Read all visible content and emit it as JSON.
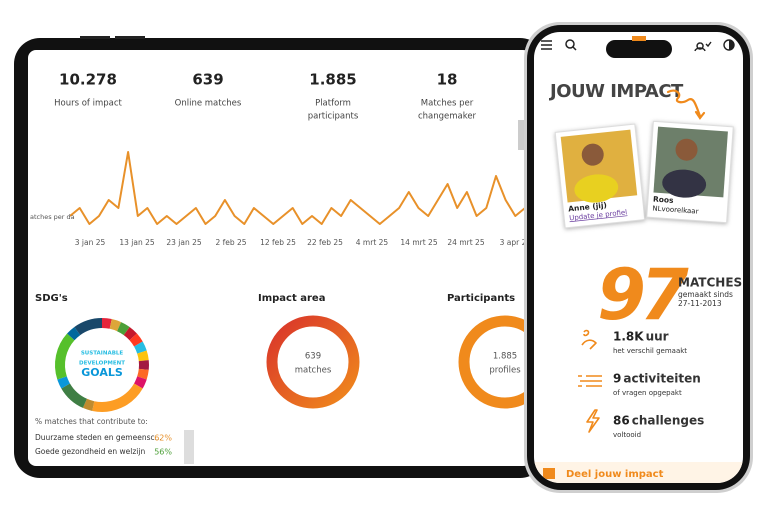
{
  "tablet": {
    "stats": [
      {
        "value": "10.278",
        "label": [
          "Hours of impact"
        ]
      },
      {
        "value": "639",
        "label": [
          "Online matches"
        ]
      },
      {
        "value": "1.885",
        "label": [
          "Platform",
          "participants"
        ]
      },
      {
        "value": "18",
        "label": [
          "Matches per",
          "changemaker"
        ]
      }
    ],
    "chart": {
      "type": "line",
      "y_label": "atches per da",
      "color": "#e8912a",
      "values": [
        2,
        3,
        1,
        2,
        4,
        3,
        10,
        2,
        3,
        1,
        2,
        1,
        2,
        3,
        1,
        2,
        4,
        2,
        1,
        3,
        2,
        1,
        2,
        3,
        1,
        2,
        1,
        3,
        2,
        4,
        3,
        2,
        1,
        2,
        3,
        5,
        3,
        2,
        4,
        6,
        3,
        5,
        2,
        3,
        7,
        4,
        2,
        3
      ],
      "ylim": [
        0,
        12
      ],
      "xtick_labels": [
        "3 jan 25",
        "13 jan 25",
        "23 jan 25",
        "2 feb 25",
        "12 feb 25",
        "22 feb 25",
        "4 mrt 25",
        "14 mrt 25",
        "24 mrt 25",
        "3 apr 2"
      ]
    },
    "sections": {
      "sdg": {
        "title": "SDG's",
        "center": [
          "SUSTAINABLE",
          "DEVELOPMENT",
          "GOALS"
        ]
      },
      "impact": {
        "title": "Impact area",
        "center": [
          "639",
          "matches"
        ]
      },
      "participants": {
        "title": "Participants",
        "center": [
          "1.885",
          "profiles"
        ]
      }
    },
    "contribute": {
      "title": "% matches that contribute to:",
      "rows": [
        {
          "name": "Duurzame steden en gemeensc...",
          "pct": "62%",
          "color": "#e8912a"
        },
        {
          "name": "Goede gezondheid en welzijn",
          "pct": "56%",
          "color": "#4c9f38"
        }
      ]
    }
  },
  "phone": {
    "title": "JOUW IMPACT",
    "cards": [
      {
        "name": "Anne (jij)",
        "sub": "Update je profiel"
      },
      {
        "name": "Roos",
        "sub": "NLvoorelkaar"
      }
    ],
    "big_number": "97",
    "big_label": "MATCHES",
    "big_sub": [
      "gemaakt sinds",
      "27-11-2013"
    ],
    "rows": [
      {
        "num": "1.8K",
        "unit": "uur",
        "sub": "het verschil gemaakt"
      },
      {
        "num": "9",
        "unit": "activiteiten",
        "sub": "of vragen opgepakt"
      },
      {
        "num": "86",
        "unit": "challenges",
        "sub": "voltooid"
      }
    ],
    "share": "Deel jouw impact"
  }
}
